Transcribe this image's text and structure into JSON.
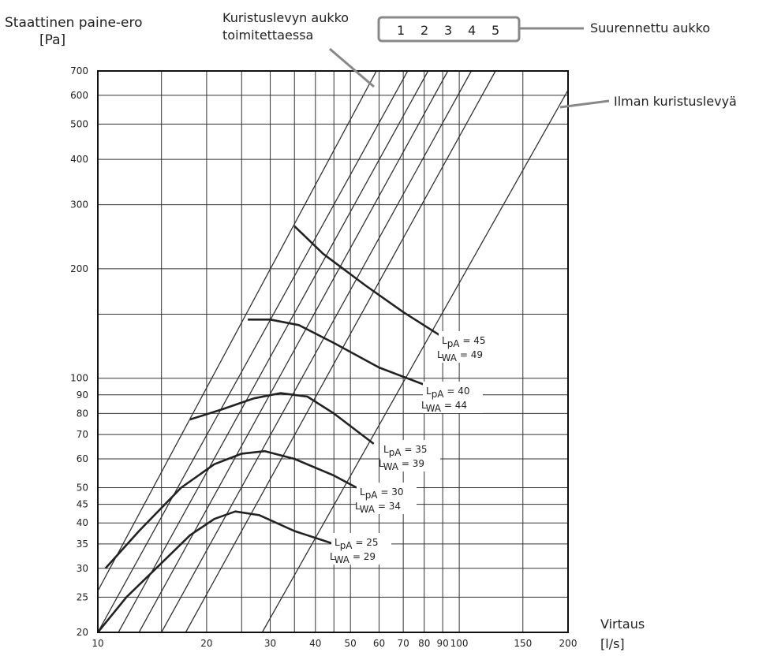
{
  "chart_data": {
    "type": "line",
    "x_scale": "log",
    "y_scale": "log",
    "xlabel": {
      "line1": "Virtaus",
      "line2": "[l/s]"
    },
    "ylabel": {
      "line1": "Staattinen paine-ero",
      "line2": "[Pa]"
    },
    "xlim": [
      10,
      200
    ],
    "ylim": [
      20,
      700
    ],
    "x_ticks": [
      10,
      20,
      30,
      40,
      50,
      60,
      70,
      80,
      90,
      100,
      150,
      200
    ],
    "y_ticks": [
      20,
      25,
      30,
      35,
      40,
      45,
      50,
      60,
      70,
      80,
      90,
      100,
      200,
      300,
      400,
      500,
      600,
      700
    ],
    "grid": true,
    "annotations": {
      "supplied_opening": [
        "Kuristuslevyn aukko",
        "toimitettaessa"
      ],
      "enlarged_opening": "Suurennettu aukko",
      "without_plate": "Ilman kuristuslevyä",
      "opening_numbers": [
        "1",
        "2",
        "3",
        "4",
        "5"
      ]
    },
    "damper_lines": [
      {
        "name": "Kuristuslevyn aukko toimitettaessa",
        "points": [
          [
            10,
            26
          ],
          [
            59,
            700
          ]
        ]
      },
      {
        "name": "1",
        "points": [
          [
            10,
            20
          ],
          [
            72,
            700
          ]
        ]
      },
      {
        "name": "2",
        "points": [
          [
            11.4,
            20
          ],
          [
            82,
            700
          ]
        ]
      },
      {
        "name": "3",
        "points": [
          [
            13,
            20
          ],
          [
            93,
            700
          ]
        ]
      },
      {
        "name": "4",
        "points": [
          [
            15,
            20
          ],
          [
            108,
            700
          ]
        ]
      },
      {
        "name": "5",
        "points": [
          [
            17.5,
            20
          ],
          [
            126,
            700
          ]
        ]
      },
      {
        "name": "Ilman kuristuslevyä",
        "points": [
          [
            28.5,
            20
          ],
          [
            200,
            620
          ]
        ]
      }
    ],
    "series": [
      {
        "name": "LpA = 25 / LWA = 29",
        "points": [
          [
            10,
            20
          ],
          [
            12,
            25
          ],
          [
            15,
            31
          ],
          [
            18,
            37
          ],
          [
            21,
            41
          ],
          [
            24,
            43
          ],
          [
            28,
            42
          ],
          [
            35,
            38
          ],
          [
            45,
            35
          ]
        ]
      },
      {
        "name": "LpA = 30 / LWA = 34",
        "points": [
          [
            10.5,
            30
          ],
          [
            13,
            38
          ],
          [
            17,
            50
          ],
          [
            21,
            58
          ],
          [
            25,
            62
          ],
          [
            29,
            63
          ],
          [
            35,
            60
          ],
          [
            45,
            54
          ],
          [
            52,
            50
          ]
        ]
      },
      {
        "name": "LpA = 35 / LWA = 39",
        "points": [
          [
            18,
            77
          ],
          [
            22,
            82
          ],
          [
            27,
            88
          ],
          [
            32,
            91
          ],
          [
            38,
            89
          ],
          [
            45,
            80
          ],
          [
            58,
            66
          ]
        ]
      },
      {
        "name": "LpA = 40 / LWA = 44",
        "points": [
          [
            26,
            145
          ],
          [
            30,
            145
          ],
          [
            36,
            140
          ],
          [
            45,
            125
          ],
          [
            60,
            107
          ],
          [
            80,
            96
          ]
        ]
      },
      {
        "name": "LpA = 45 / LWA = 49",
        "points": [
          [
            35,
            262
          ],
          [
            42,
            220
          ],
          [
            55,
            180
          ],
          [
            70,
            152
          ],
          [
            92,
            128
          ]
        ]
      }
    ],
    "series_labels": [
      {
        "lpa": "= 45",
        "lwa": "= 49"
      },
      {
        "lpa": "= 40",
        "lwa": "= 44"
      },
      {
        "lpa": "= 35",
        "lwa": "= 39"
      },
      {
        "lpa": "= 30",
        "lwa": "= 34"
      },
      {
        "lpa": "= 25",
        "lwa": "= 29"
      }
    ]
  }
}
